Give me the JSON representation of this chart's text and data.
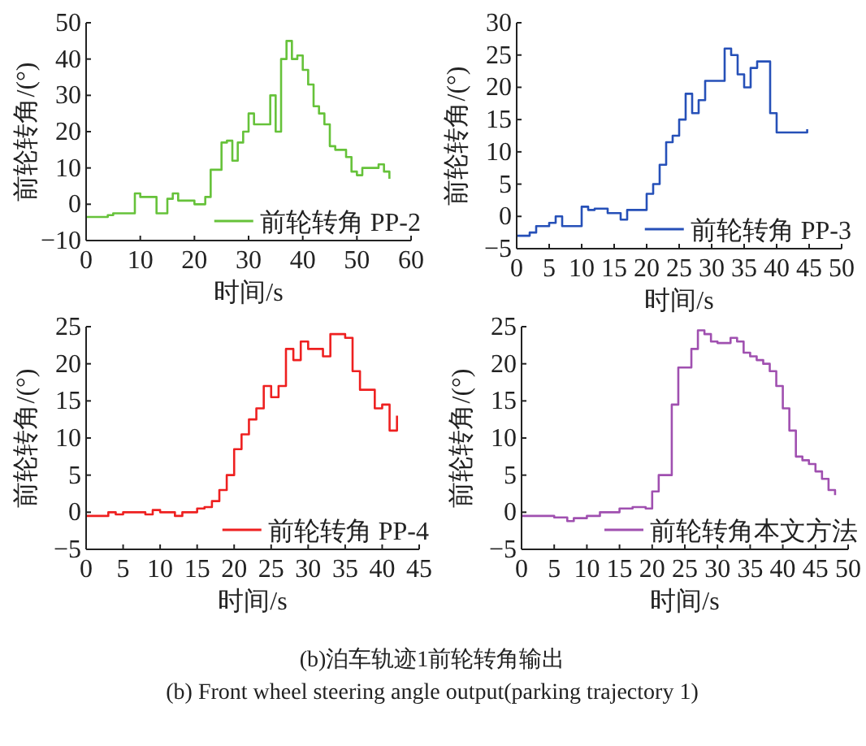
{
  "chart_data": [
    {
      "type": "step",
      "xlabel": "时间/s",
      "ylabel": "前轮转角/(°)",
      "xlim": [
        0,
        60
      ],
      "xticks": [
        0,
        10,
        20,
        30,
        40,
        50,
        60
      ],
      "ylim": [
        -10,
        50
      ],
      "yticks": [
        -10,
        0,
        10,
        20,
        30,
        40,
        50
      ],
      "legend": "bottom right",
      "series": [
        {
          "name": "前轮转角 PP-2",
          "color": "#66c23a",
          "x": [
            0,
            4,
            5,
            9,
            10,
            13,
            15,
            16,
            17,
            20,
            22,
            23,
            25,
            26,
            27,
            28,
            29,
            30,
            31,
            33,
            34,
            35,
            36,
            37,
            38,
            39,
            40,
            41,
            42,
            43,
            44,
            45,
            46,
            48,
            49,
            50,
            51,
            52,
            54,
            55,
            56
          ],
          "values": [
            -3.5,
            -3,
            -2.5,
            3,
            2,
            -2.5,
            1.5,
            3,
            1,
            0,
            2,
            9.5,
            17,
            17.5,
            12,
            17,
            20,
            25,
            22,
            22,
            30,
            20,
            40,
            45,
            40,
            41,
            37,
            33,
            27,
            25,
            22,
            16,
            15,
            13,
            9,
            8,
            10,
            10,
            11,
            9,
            7
          ]
        }
      ]
    },
    {
      "type": "step",
      "xlabel": "时间/s",
      "ylabel": "前轮转角/(°)",
      "xlim": [
        0,
        50
      ],
      "xticks": [
        0,
        5,
        10,
        15,
        20,
        25,
        30,
        35,
        40,
        45,
        50
      ],
      "ylim": [
        -5,
        30
      ],
      "yticks": [
        -5,
        0,
        5,
        10,
        15,
        20,
        25,
        30
      ],
      "legend": "bottom right",
      "series": [
        {
          "name": "前轮转角 PP-3",
          "color": "#2650b8",
          "x": [
            0,
            2,
            3,
            5,
            6,
            7,
            10,
            11,
            12,
            14,
            16,
            17,
            19,
            20,
            21,
            22,
            23,
            24,
            25,
            26,
            27,
            28,
            29,
            31,
            32,
            33,
            34,
            35,
            36,
            37,
            38,
            39,
            40,
            44.7
          ],
          "values": [
            -3,
            -2.5,
            -1.5,
            -1,
            0,
            -1.5,
            1.5,
            1,
            1.2,
            0.5,
            -0.5,
            1,
            1,
            3.5,
            5,
            8,
            11.5,
            12.5,
            15,
            19,
            16,
            18,
            21,
            21,
            26,
            25,
            22,
            20,
            23,
            24,
            24,
            16,
            13,
            13.5
          ]
        }
      ]
    },
    {
      "type": "step",
      "xlabel": "时间/s",
      "ylabel": "前轮转角/(°)",
      "xlim": [
        0,
        45
      ],
      "xticks": [
        0,
        5,
        10,
        15,
        20,
        25,
        30,
        35,
        40,
        45
      ],
      "ylim": [
        -5,
        25
      ],
      "yticks": [
        -5,
        0,
        5,
        10,
        15,
        20,
        25
      ],
      "legend": "bottom right",
      "series": [
        {
          "name": "前轮转角 PP-4",
          "color": "#ee2020",
          "x": [
            0,
            3,
            4,
            5,
            8,
            9,
            10,
            12,
            13,
            15,
            16,
            17,
            18,
            19,
            20,
            21,
            22,
            23,
            24,
            25,
            26,
            27,
            28,
            29,
            30,
            31,
            32,
            33,
            34,
            35,
            36,
            37,
            38,
            39,
            40,
            41,
            42
          ],
          "values": [
            -0.5,
            0,
            -0.3,
            0,
            -0.3,
            0.3,
            0,
            -0.5,
            0,
            0.5,
            0.7,
            1.5,
            3,
            5,
            8.5,
            10.5,
            12.5,
            14,
            17,
            15.5,
            17,
            22,
            20.5,
            23,
            22,
            22,
            21,
            24,
            24,
            23.5,
            19,
            16.5,
            16.5,
            14,
            14.5,
            11,
            13
          ]
        }
      ]
    },
    {
      "type": "step",
      "xlabel": "时间/s",
      "ylabel": "前轮转角/(°)",
      "xlim": [
        0,
        50
      ],
      "xticks": [
        0,
        5,
        10,
        15,
        20,
        25,
        30,
        35,
        40,
        45,
        50
      ],
      "ylim": [
        -5,
        25
      ],
      "yticks": [
        -5,
        0,
        5,
        10,
        15,
        20,
        25
      ],
      "legend": "bottom right",
      "annotations": [
        "(b)泊车轨迹1前轮转角输出",
        "(b) Front wheel steering angle output(parking trajectory 1)"
      ],
      "series": [
        {
          "name": "前轮转角本文方法",
          "color": "#a050b0",
          "x": [
            0,
            5,
            7,
            8,
            10,
            12,
            15,
            17,
            19,
            20,
            21,
            23,
            24,
            25,
            26,
            27,
            28,
            29,
            30,
            32,
            33,
            34,
            35,
            36,
            37,
            38,
            39,
            40,
            41,
            42,
            43,
            44,
            45,
            46,
            47,
            48
          ],
          "values": [
            -0.5,
            -0.7,
            -1.2,
            -0.8,
            -0.5,
            0,
            0.5,
            0.7,
            0.5,
            2.8,
            5,
            14.5,
            19.5,
            19.5,
            22,
            24.5,
            24,
            23,
            22.8,
            23.5,
            23,
            21.5,
            21,
            20.5,
            20,
            19,
            17,
            14,
            11,
            7.5,
            7,
            6.5,
            5.5,
            4.5,
            3,
            2.3
          ]
        }
      ]
    }
  ]
}
